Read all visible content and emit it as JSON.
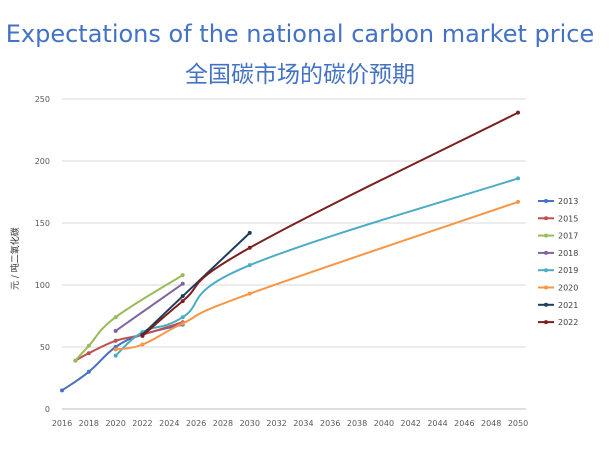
{
  "title": "Expectations of the national carbon market price",
  "subtitle": "全国碳市场的碳价预期",
  "chart_data": {
    "type": "line",
    "title": "Expectations of the national carbon market price",
    "subtitle": "全国碳市场的碳价预期",
    "ylabel": "元 / 吨二氧化碳",
    "xlabel": "",
    "xlim": [
      2016,
      2050
    ],
    "ylim": [
      0,
      250
    ],
    "x_ticks": [
      "2016",
      "2018",
      "2020",
      "2022",
      "2024",
      "2026",
      "2028",
      "2030",
      "2032",
      "2034",
      "2036",
      "2038",
      "2040",
      "2042",
      "2044",
      "2046",
      "2048",
      "2050"
    ],
    "y_ticks": [
      "0",
      "50",
      "100",
      "150",
      "200",
      "250"
    ],
    "grid": "horizontal",
    "legend_position": "right",
    "series": [
      {
        "name": "2013",
        "color": "#4472c4",
        "points": [
          [
            2016,
            15
          ],
          [
            2018,
            30
          ],
          [
            2020,
            50
          ],
          [
            2022,
            60
          ],
          [
            2025,
            68
          ]
        ]
      },
      {
        "name": "2015",
        "color": "#c0504d",
        "points": [
          [
            2017,
            39
          ],
          [
            2018,
            45
          ],
          [
            2020,
            55
          ],
          [
            2022,
            60
          ],
          [
            2025,
            70
          ]
        ]
      },
      {
        "name": "2017",
        "color": "#9bbb59",
        "points": [
          [
            2017,
            39
          ],
          [
            2018,
            51
          ],
          [
            2020,
            74
          ],
          [
            2025,
            108
          ]
        ]
      },
      {
        "name": "2018",
        "color": "#8064a2",
        "points": [
          [
            2020,
            63
          ],
          [
            2025,
            101
          ]
        ]
      },
      {
        "name": "2019",
        "color": "#4bacc6",
        "points": [
          [
            2020,
            43
          ],
          [
            2022,
            62
          ],
          [
            2025,
            74
          ],
          [
            2030,
            116
          ],
          [
            2050,
            186
          ]
        ]
      },
      {
        "name": "2020",
        "color": "#f79646",
        "points": [
          [
            2020,
            48
          ],
          [
            2022,
            52
          ],
          [
            2025,
            69
          ],
          [
            2030,
            93
          ],
          [
            2050,
            167
          ]
        ]
      },
      {
        "name": "2021",
        "color": "#1f3d5c",
        "points": [
          [
            2022,
            60
          ],
          [
            2025,
            91
          ],
          [
            2030,
            142
          ]
        ]
      },
      {
        "name": "2022",
        "color": "#7b1e1e",
        "points": [
          [
            2022,
            59
          ],
          [
            2025,
            87
          ],
          [
            2030,
            130
          ],
          [
            2050,
            239
          ]
        ]
      }
    ]
  }
}
